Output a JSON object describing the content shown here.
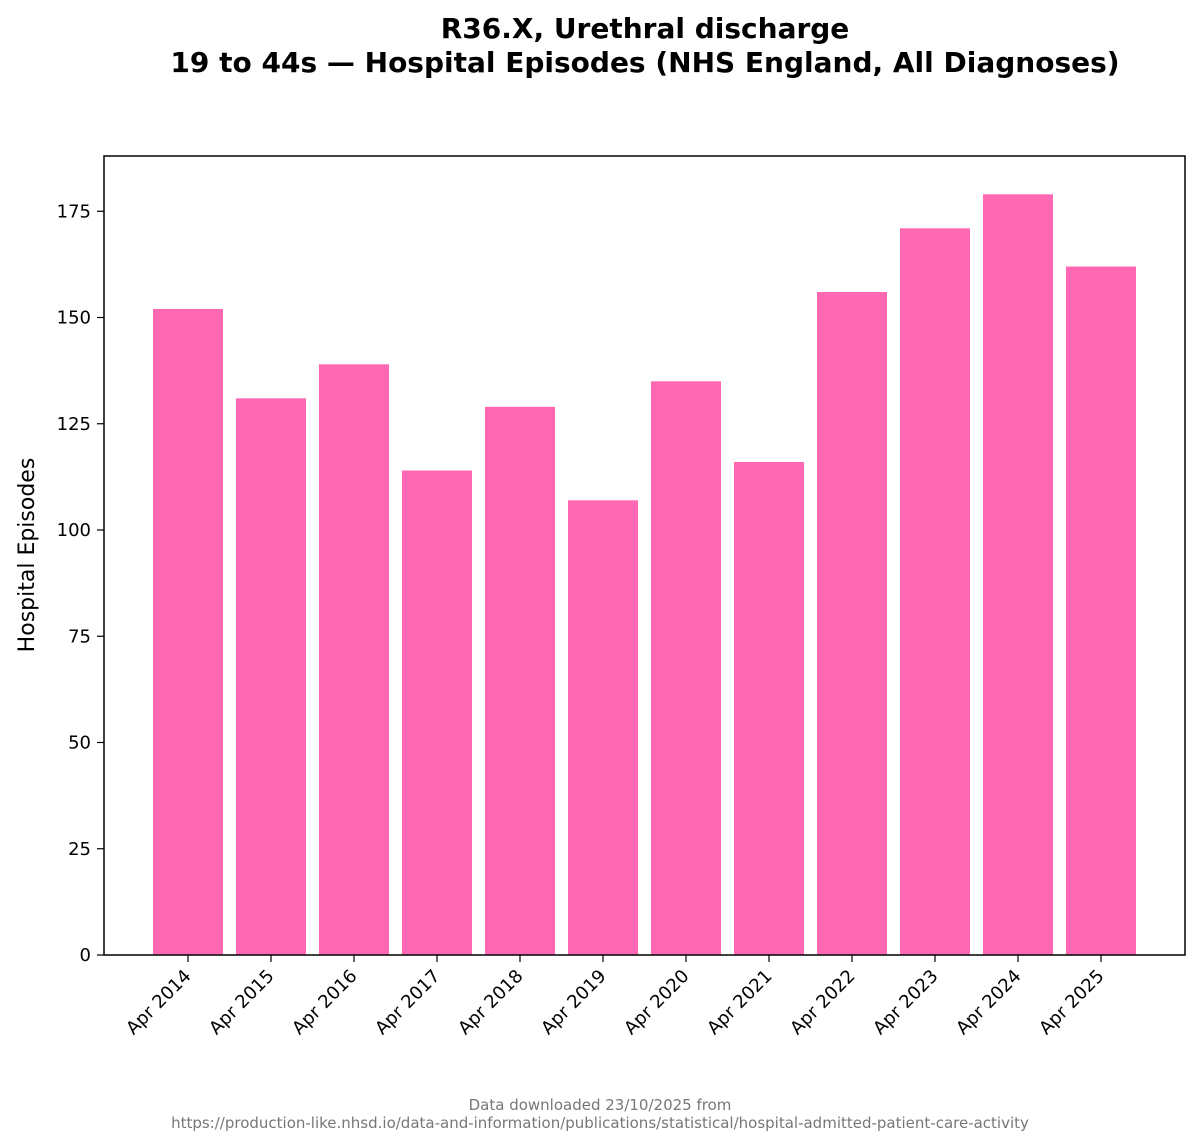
{
  "chart_data": {
    "type": "bar",
    "title_line1": "R36.X, Urethral discharge",
    "title_line2": "19 to 44s — Hospital Episodes (NHS England, All Diagnoses)",
    "xlabel": "",
    "ylabel": "Hospital Episodes",
    "categories": [
      "Apr 2014",
      "Apr 2015",
      "Apr 2016",
      "Apr 2017",
      "Apr 2018",
      "Apr 2019",
      "Apr 2020",
      "Apr 2021",
      "Apr 2022",
      "Apr 2023",
      "Apr 2024",
      "Apr 2025"
    ],
    "values": [
      152,
      131,
      139,
      114,
      129,
      107,
      135,
      116,
      156,
      171,
      179,
      162
    ],
    "ylim": [
      0,
      188
    ],
    "yticks": [
      0,
      25,
      50,
      75,
      100,
      125,
      150,
      175
    ],
    "bar_color": "#ff69b4",
    "grid": false,
    "legend": "none"
  },
  "footer": {
    "line1": "Data downloaded 23/10/2025 from",
    "line2": "https://production-like.nhsd.io/data-and-information/publications/statistical/hospital-admitted-patient-care-activity"
  }
}
